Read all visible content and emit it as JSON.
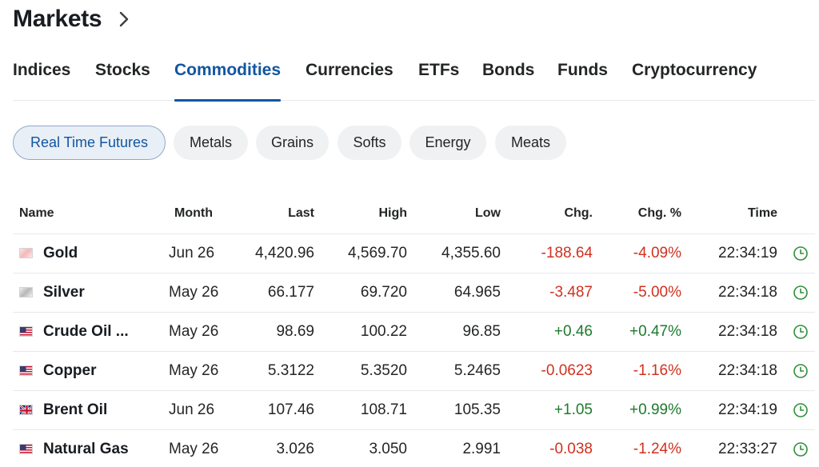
{
  "header": {
    "title": "Markets"
  },
  "tabs": [
    "Indices",
    "Stocks",
    "Commodities",
    "Currencies",
    "ETFs",
    "Bonds",
    "Funds",
    "Cryptocurrency"
  ],
  "active_tab": "Commodities",
  "filters": [
    "Real Time Futures",
    "Metals",
    "Grains",
    "Softs",
    "Energy",
    "Meats"
  ],
  "active_filter": "Real Time Futures",
  "table": {
    "columns": [
      "Name",
      "Month",
      "Last",
      "High",
      "Low",
      "Chg.",
      "Chg. %",
      "Time"
    ],
    "rows": [
      {
        "name": "Gold",
        "flag": "gold-icon",
        "month": "Jun 26",
        "last": "4,420.96",
        "high": "4,569.70",
        "low": "4,355.60",
        "chg": "-188.64",
        "chg_pct": "-4.09%",
        "time": "22:34:19",
        "direction": "down"
      },
      {
        "name": "Silver",
        "flag": "silver-icon",
        "month": "May 26",
        "last": "66.177",
        "high": "69.720",
        "low": "64.965",
        "chg": "-3.487",
        "chg_pct": "-5.00%",
        "time": "22:34:18",
        "direction": "down"
      },
      {
        "name": "Crude Oil ...",
        "flag": "us-flag-icon",
        "month": "May 26",
        "last": "98.69",
        "high": "100.22",
        "low": "96.85",
        "chg": "+0.46",
        "chg_pct": "+0.47%",
        "time": "22:34:18",
        "direction": "up"
      },
      {
        "name": "Copper",
        "flag": "us-flag-icon",
        "month": "May 26",
        "last": "5.3122",
        "high": "5.3520",
        "low": "5.2465",
        "chg": "-0.0623",
        "chg_pct": "-1.16%",
        "time": "22:34:18",
        "direction": "down"
      },
      {
        "name": "Brent Oil",
        "flag": "uk-flag-icon",
        "month": "Jun 26",
        "last": "107.46",
        "high": "108.71",
        "low": "105.35",
        "chg": "+1.05",
        "chg_pct": "+0.99%",
        "time": "22:34:19",
        "direction": "up"
      },
      {
        "name": "Natural Gas",
        "flag": "us-flag-icon",
        "month": "May 26",
        "last": "3.026",
        "high": "3.050",
        "low": "2.991",
        "chg": "-0.038",
        "chg_pct": "-1.24%",
        "time": "22:33:27",
        "direction": "down"
      }
    ]
  },
  "colors": {
    "accent": "#1256a0",
    "negative": "#d0311f",
    "positive": "#1e7a2e",
    "clock": "#2f8f3a"
  }
}
